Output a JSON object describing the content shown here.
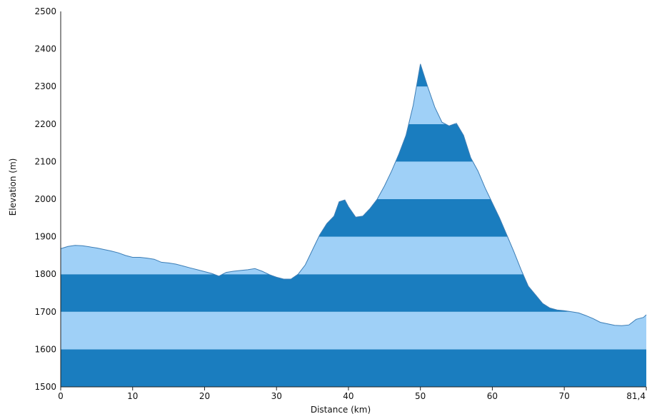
{
  "chart_data": {
    "type": "area",
    "title": "",
    "xlabel": "Distance (km)",
    "ylabel": "Elevation (m)",
    "xlim": [
      0,
      81.4
    ],
    "ylim": [
      1500,
      2500
    ],
    "x_ticks": [
      0,
      10,
      20,
      30,
      40,
      50,
      60,
      70,
      81.4
    ],
    "x_tick_labels": [
      "0",
      "10",
      "20",
      "30",
      "40",
      "50",
      "60",
      "70",
      "81,4"
    ],
    "y_ticks": [
      1500,
      1600,
      1700,
      1800,
      1900,
      2000,
      2100,
      2200,
      2300,
      2400,
      2500
    ],
    "y_tick_labels": [
      "1500",
      "1600",
      "1700",
      "1800",
      "1900",
      "2000",
      "2100",
      "2200",
      "2300",
      "2400",
      "2500"
    ],
    "band_colors": [
      "#1a7dbf",
      "#9fd0f7"
    ],
    "outline_color": "#3c7db5",
    "grid": false,
    "legend": "none",
    "series": [
      {
        "x": [
          0,
          1,
          2,
          3,
          4,
          5,
          6,
          7,
          8,
          9,
          10,
          11,
          12,
          13,
          14,
          15,
          16,
          17,
          18,
          19,
          20,
          21,
          22,
          23,
          24,
          25,
          26,
          27,
          28,
          29,
          30,
          31,
          32,
          33,
          34,
          35,
          36,
          37,
          38,
          38.7,
          39.5,
          40,
          41,
          42,
          43,
          44,
          45,
          46,
          47,
          48,
          49,
          50,
          51,
          52,
          53,
          54,
          55,
          56,
          57,
          58,
          59,
          60,
          61,
          62,
          63,
          64,
          65,
          66,
          67,
          68,
          69,
          70,
          71,
          72,
          73,
          74,
          75,
          76,
          77,
          78,
          79,
          80,
          81,
          81.4
        ],
        "y": [
          1868,
          1874,
          1877,
          1876,
          1873,
          1870,
          1866,
          1862,
          1857,
          1850,
          1845,
          1845,
          1843,
          1840,
          1832,
          1830,
          1827,
          1822,
          1817,
          1812,
          1807,
          1802,
          1795,
          1805,
          1808,
          1810,
          1812,
          1815,
          1808,
          1799,
          1792,
          1787,
          1787,
          1800,
          1825,
          1865,
          1905,
          1935,
          1955,
          1993,
          1998,
          1980,
          1952,
          1955,
          1975,
          2000,
          2035,
          2075,
          2120,
          2170,
          2250,
          2360,
          2300,
          2245,
          2205,
          2195,
          2202,
          2170,
          2110,
          2075,
          2030,
          1990,
          1950,
          1905,
          1860,
          1812,
          1768,
          1745,
          1722,
          1710,
          1705,
          1703,
          1700,
          1697,
          1690,
          1682,
          1672,
          1668,
          1664,
          1663,
          1665,
          1680,
          1685,
          1692
        ]
      }
    ]
  }
}
